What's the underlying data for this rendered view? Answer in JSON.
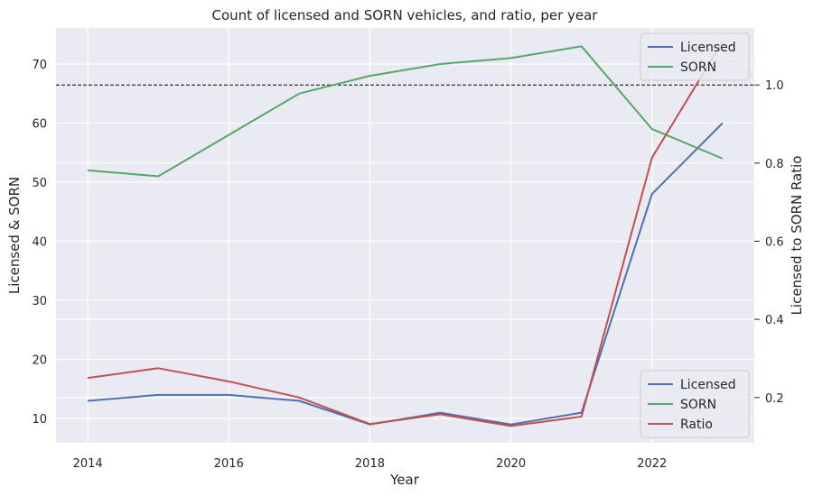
{
  "chart_data": {
    "type": "line",
    "title": "Count of licensed and SORN vehicles, and ratio, per year",
    "xlabel": "Year",
    "ylabel": "Licensed & SORN",
    "ylabel_right": "Licensed to SORN Ratio",
    "ylabel_right_color": "#ff0000",
    "x": [
      2014,
      2015,
      2016,
      2017,
      2018,
      2019,
      2020,
      2021,
      2022,
      2023
    ],
    "xlim": [
      2013.55,
      2023.45
    ],
    "ylim": [
      5.9,
      76.1
    ],
    "ylim_right": [
      0.084,
      1.146
    ],
    "xticks": [
      2014,
      2016,
      2018,
      2020,
      2022
    ],
    "yticks": [
      10,
      20,
      30,
      40,
      50,
      60,
      70
    ],
    "yticks_right": [
      0.2,
      0.4,
      0.6,
      0.8,
      1.0
    ],
    "yticks_right_labels": [
      "0.2",
      "0.4",
      "0.6",
      "0.8",
      "1.0"
    ],
    "grid": true,
    "background": "#eaeaf2",
    "reference_line": {
      "axis": "right",
      "y": 1.0,
      "style": "dashed",
      "color": "#000000"
    },
    "series": [
      {
        "name": "Licensed",
        "axis": "left",
        "color": "#4c72b0",
        "values": [
          13,
          14,
          14,
          13,
          9,
          11,
          9,
          11,
          48,
          60
        ]
      },
      {
        "name": "SORN",
        "axis": "left",
        "color": "#55a868",
        "values": [
          52,
          51,
          58,
          65,
          68,
          70,
          71,
          73,
          59,
          54
        ]
      },
      {
        "name": "Ratio",
        "axis": "right",
        "color": "#c44e52",
        "values": [
          0.25,
          0.275,
          0.241,
          0.2,
          0.132,
          0.157,
          0.127,
          0.151,
          0.814,
          1.111
        ]
      }
    ],
    "legends": [
      {
        "placement": "top-right",
        "entries": [
          "Licensed",
          "SORN"
        ]
      },
      {
        "placement": "bottom-right",
        "entries": [
          "Licensed",
          "SORN",
          "Ratio"
        ]
      }
    ]
  }
}
